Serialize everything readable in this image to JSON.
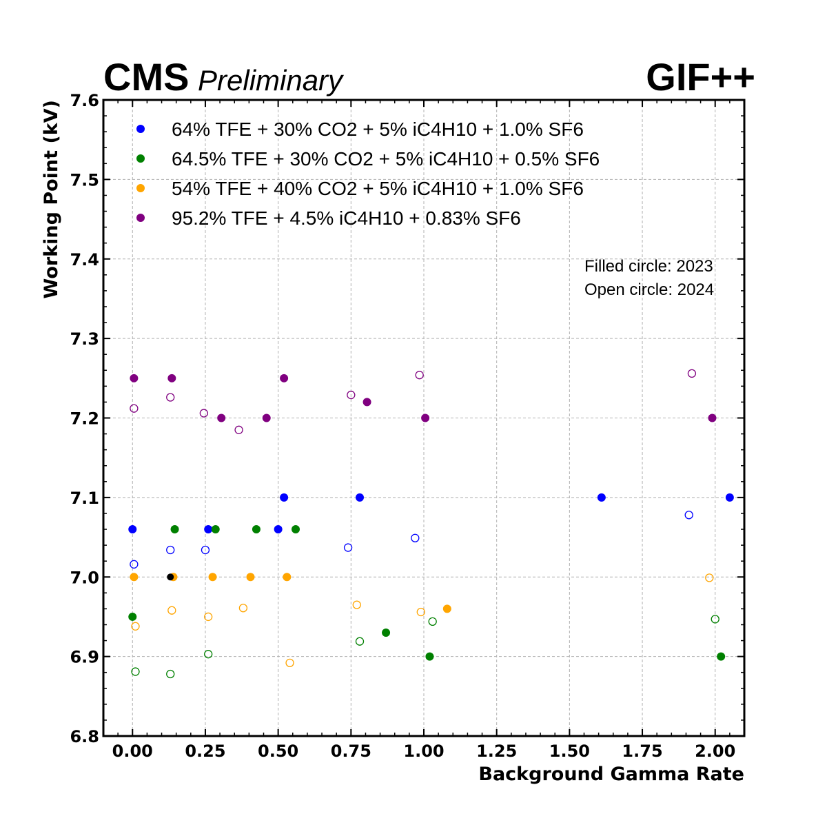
{
  "header": {
    "experiment": "CMS",
    "status": "Preliminary",
    "facility": "GIF++"
  },
  "annotations": {
    "filled_note": "Filled circle: 2023",
    "open_note": "Open circle: 2024"
  },
  "chart_data": {
    "type": "scatter",
    "xlabel": "Background Gamma Rate",
    "ylabel": "Working Point (kV)",
    "xlim": [
      -0.1,
      2.1
    ],
    "ylim": [
      6.8,
      7.6
    ],
    "xticks": [
      "0.00",
      "0.25",
      "0.50",
      "0.75",
      "1.00",
      "1.25",
      "1.50",
      "1.75",
      "2.00"
    ],
    "yticks": [
      "6.8",
      "6.9",
      "7.0",
      "7.1",
      "7.2",
      "7.3",
      "7.4",
      "7.5",
      "7.6"
    ],
    "grid": true,
    "legend_position": "top-left",
    "marker_style": {
      "filled": "2023",
      "open": "2024"
    },
    "series": [
      {
        "name": "64% TFE + 30% CO2 + 5% iC4H10 + 1.0% SF6",
        "color": "#0000ff",
        "filled": [
          [
            0.0,
            7.06
          ],
          [
            0.26,
            7.06
          ],
          [
            0.5,
            7.06
          ],
          [
            0.52,
            7.1
          ],
          [
            0.78,
            7.1
          ],
          [
            1.61,
            7.1
          ],
          [
            2.05,
            7.1
          ]
        ],
        "open": [
          [
            0.005,
            7.016
          ],
          [
            0.13,
            7.034
          ],
          [
            0.25,
            7.034
          ],
          [
            0.74,
            7.037
          ],
          [
            0.97,
            7.049
          ],
          [
            1.91,
            7.078
          ]
        ]
      },
      {
        "name": "64.5% TFE + 30% CO2 + 5% iC4H10 + 0.5% SF6",
        "color": "#008000",
        "filled": [
          [
            0.0,
            6.95
          ],
          [
            0.145,
            7.06
          ],
          [
            0.285,
            7.06
          ],
          [
            0.425,
            7.06
          ],
          [
            0.56,
            7.06
          ],
          [
            0.87,
            6.93
          ],
          [
            1.02,
            6.9
          ],
          [
            2.02,
            6.9
          ]
        ],
        "open": [
          [
            0.01,
            6.881
          ],
          [
            0.13,
            6.878
          ],
          [
            0.26,
            6.903
          ],
          [
            0.78,
            6.919
          ],
          [
            1.03,
            6.944
          ],
          [
            2.0,
            6.947
          ]
        ]
      },
      {
        "name": "54% TFE + 40% CO2 + 5% iC4H10 + 1.0% SF6",
        "color": "#ffa500",
        "filled": [
          [
            0.005,
            7.0
          ],
          [
            0.14,
            7.0
          ],
          [
            0.275,
            7.0
          ],
          [
            0.405,
            7.0
          ],
          [
            0.53,
            7.0
          ],
          [
            1.08,
            6.96
          ]
        ],
        "open": [
          [
            0.01,
            6.938
          ],
          [
            0.135,
            6.958
          ],
          [
            0.26,
            6.95
          ],
          [
            0.38,
            6.961
          ],
          [
            0.54,
            6.892
          ],
          [
            0.77,
            6.965
          ],
          [
            0.99,
            6.956
          ],
          [
            1.98,
            6.999
          ]
        ]
      },
      {
        "name": "95.2% TFE + 4.5% iC4H10 + 0.83% SF6",
        "color": "#800080",
        "filled": [
          [
            0.005,
            7.25
          ],
          [
            0.135,
            7.25
          ],
          [
            0.305,
            7.2
          ],
          [
            0.46,
            7.2
          ],
          [
            0.52,
            7.25
          ],
          [
            0.805,
            7.22
          ],
          [
            1.005,
            7.2
          ],
          [
            1.99,
            7.2
          ]
        ],
        "open": [
          [
            0.005,
            7.212
          ],
          [
            0.13,
            7.226
          ],
          [
            0.245,
            7.206
          ],
          [
            0.365,
            7.185
          ],
          [
            0.75,
            7.229
          ],
          [
            0.985,
            7.254
          ],
          [
            1.92,
            7.256
          ]
        ]
      }
    ],
    "extra_points": {
      "color": "#000000",
      "filled": [
        [
          0.13,
          7.0
        ]
      ]
    }
  }
}
